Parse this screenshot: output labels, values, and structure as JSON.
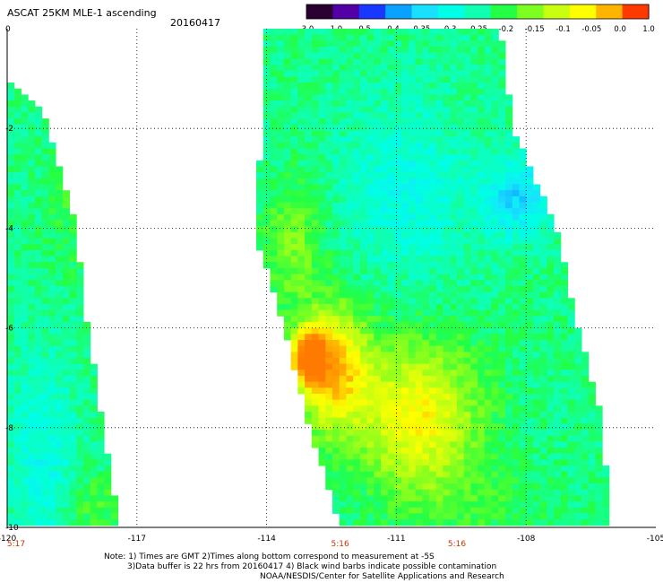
{
  "header": {
    "title": "ASCAT 25KM MLE-1 ascending",
    "date": "20160417"
  },
  "colorbar": {
    "labels": [
      "-3.0",
      "-1.0",
      "-0.5",
      "-0.4",
      "-0.35",
      "-0.3",
      "-0.25",
      "-0.2",
      "-0.15",
      "-0.1",
      "-0.05",
      "0.0",
      "1.0"
    ],
    "colors": [
      "#2a0030",
      "#5200a6",
      "#1838ff",
      "#0aa2ff",
      "#1ae0ff",
      "#00ffe6",
      "#10ffb0",
      "#22ff44",
      "#7dff20",
      "#c8ff10",
      "#ffff00",
      "#ffb400",
      "#ff3a00"
    ]
  },
  "footer": {
    "line1": "Note: 1) Times are GMT 2)Times along bottom correspond to measurement at -5S",
    "line2": "3)Data buffer is 22 hrs from 20160417 4) Black wind barbs indicate possible contamination",
    "line3": "NOAA/NESDIS/Center for Satellite Applications and Research"
  },
  "chart_data": {
    "type": "heatmap",
    "x_ticks": [
      "-120",
      "-117",
      "-114",
      "-111",
      "-108",
      "-105"
    ],
    "x_tick_values": [
      -120,
      -117,
      -114,
      -111,
      -108,
      -105
    ],
    "y_ticks": [
      "0",
      "-2",
      "-4",
      "-6",
      "-8",
      "-10"
    ],
    "y_tick_values": [
      0,
      -2,
      -4,
      -6,
      -8,
      -10
    ],
    "xlim": [
      -120,
      -105
    ],
    "ylim": [
      -10,
      0
    ],
    "grid": true,
    "time_labels": [
      {
        "text": "5:17",
        "lon": -120,
        "color": "#c83200"
      },
      {
        "text": "5:16",
        "lon": -112.3,
        "color": "#c83200"
      },
      {
        "text": "5:16",
        "lon": -109.6,
        "color": "#c83200"
      }
    ],
    "swaths": [
      {
        "name": "swath-west",
        "polygon": [
          [
            -120,
            -1.0
          ],
          [
            -119.2,
            -1.6
          ],
          [
            -118.4,
            -4.0
          ],
          [
            -118.2,
            -5.6
          ],
          [
            -117.6,
            -9.0
          ],
          [
            -117.4,
            -10
          ],
          [
            -120,
            -10
          ]
        ]
      },
      {
        "name": "swath-east",
        "polygon": [
          [
            -114.1,
            0
          ],
          [
            -108.6,
            0
          ],
          [
            -108.3,
            -2.0
          ],
          [
            -107.3,
            -4.0
          ],
          [
            -106.8,
            -6.0
          ],
          [
            -106.2,
            -8.0
          ],
          [
            -106.1,
            -10
          ],
          [
            -112.3,
            -10
          ],
          [
            -113.0,
            -8.0
          ],
          [
            -113.6,
            -6.0
          ],
          [
            -114.3,
            -4.0
          ],
          [
            -114.1,
            -2.0
          ]
        ]
      }
    ],
    "features": [
      {
        "lon": -110.8,
        "lat": -3.2,
        "value": -0.3,
        "sx": 1.5,
        "sy": 1.8
      },
      {
        "lon": -108.2,
        "lat": -3.4,
        "value": -0.35,
        "sx": 0.8,
        "sy": 0.8
      },
      {
        "lon": -112.5,
        "lat": -6.8,
        "value": 0.0,
        "sx": 0.8,
        "sy": 1.2
      },
      {
        "lon": -113.0,
        "lat": -6.6,
        "value": 0.1,
        "sx": 0.35,
        "sy": 0.5
      },
      {
        "lon": -110.5,
        "lat": -7.8,
        "value": -0.05,
        "sx": 1.4,
        "sy": 1.5
      },
      {
        "lon": -109.0,
        "lat": -9.6,
        "value": -0.2,
        "sx": 1.5,
        "sy": 0.8
      },
      {
        "lon": -113.4,
        "lat": -4.3,
        "value": -0.15,
        "sx": 0.7,
        "sy": 1.2
      },
      {
        "lon": -118.6,
        "lat": -3.5,
        "value": -0.2,
        "sx": 0.6,
        "sy": 1.6
      },
      {
        "lon": -119.2,
        "lat": -8.5,
        "value": -0.3,
        "sx": 0.8,
        "sy": 2.0
      },
      {
        "lon": -118.0,
        "lat": -9.5,
        "value": -0.18,
        "sx": 0.6,
        "sy": 0.6
      }
    ],
    "base_value": -0.23
  }
}
